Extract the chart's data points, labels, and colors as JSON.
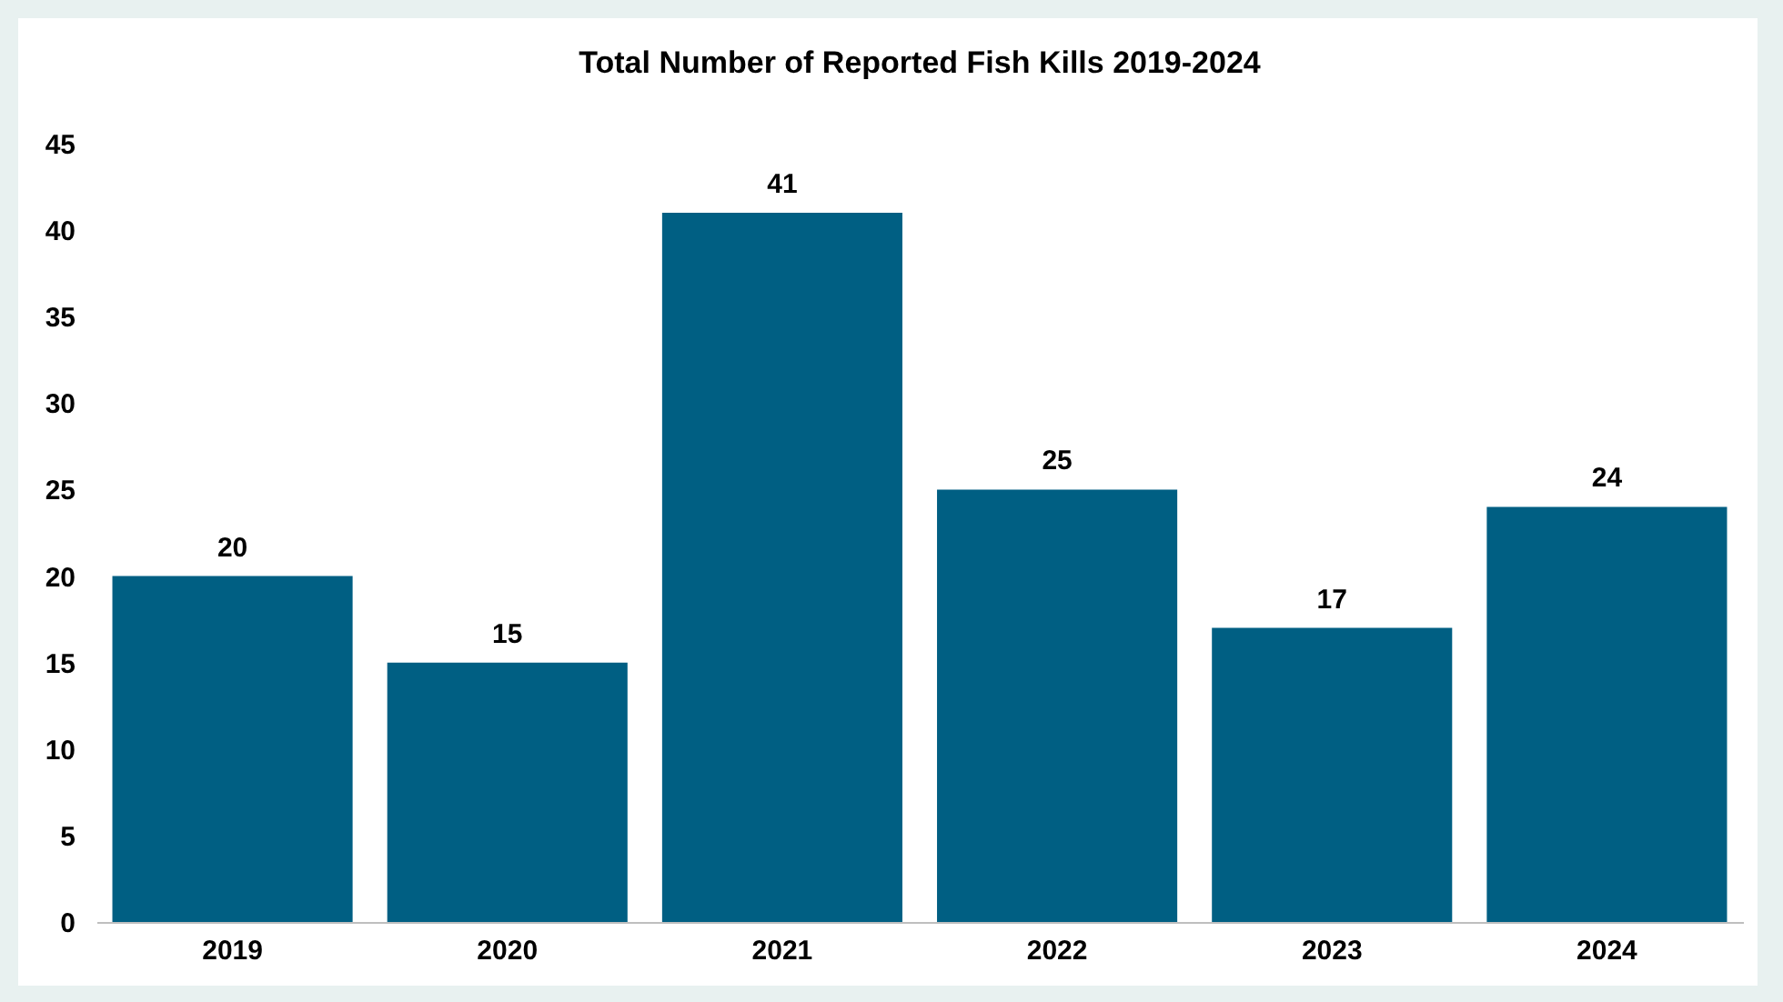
{
  "chart_data": {
    "type": "bar",
    "title": "Total Number of Reported Fish Kills 2019-2024",
    "categories": [
      "2019",
      "2020",
      "2021",
      "2022",
      "2023",
      "2024"
    ],
    "values": [
      20,
      15,
      41,
      25,
      17,
      24
    ],
    "color": "#005f83",
    "ylim": [
      0,
      45
    ],
    "yticks": [
      0,
      5,
      10,
      15,
      20,
      25,
      30,
      35,
      40,
      45
    ],
    "grid": false,
    "data_labels": true
  }
}
